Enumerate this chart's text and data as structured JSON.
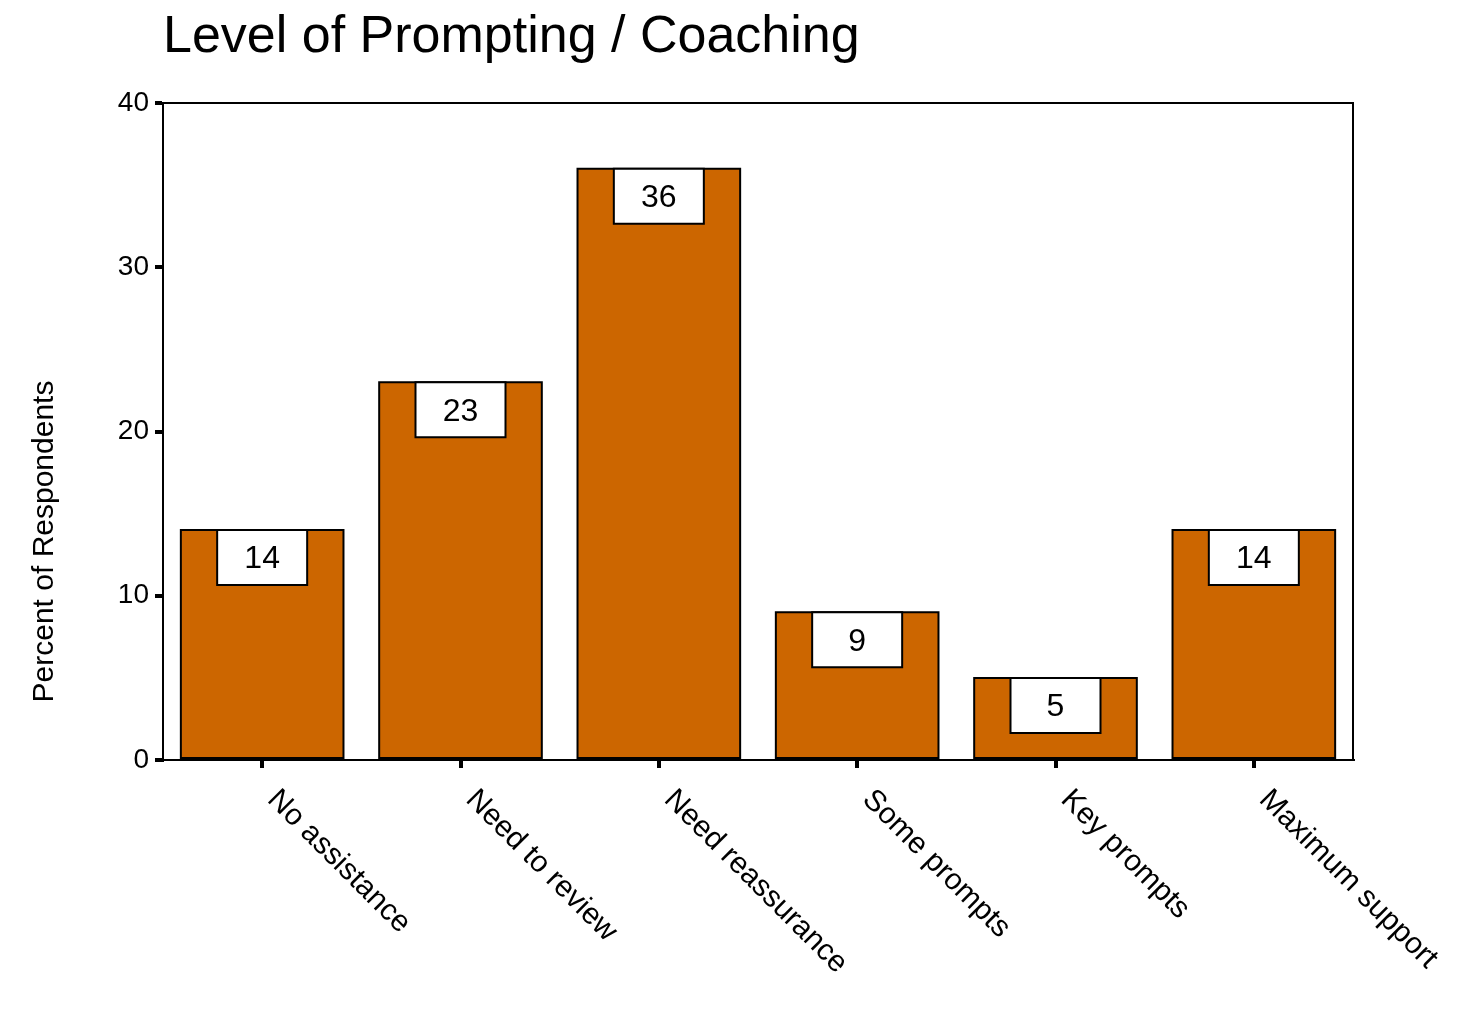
{
  "chart_data": {
    "type": "bar",
    "title": "Level of Prompting / Coaching",
    "ylabel": "Percent of Respondents",
    "categories": [
      "No assistance",
      "Need to review",
      "Need reassurance",
      "Some prompts",
      "Key prompts",
      "Maximum support"
    ],
    "values": [
      14,
      23,
      36,
      9,
      5,
      14
    ],
    "color": "#cc6600",
    "ylim": [
      0,
      40
    ],
    "yticks": [
      0,
      10,
      20,
      30,
      40
    ],
    "grid": false,
    "legend": false,
    "data_labels": true
  }
}
